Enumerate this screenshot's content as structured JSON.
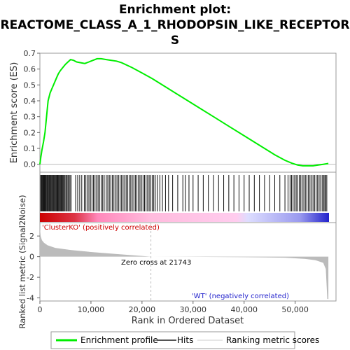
{
  "chart_data": {
    "type": "line",
    "title_line1": "Enrichment plot:",
    "title_line2": "REACTOME_CLASS_A_1_RHODOPSIN_LIKE_RECEPTOR",
    "title_line3": "S",
    "es_panel": {
      "ylabel": "Enrichment score (ES)",
      "ylim": [
        -0.05,
        0.7
      ],
      "yticks": [
        "0.0",
        "0.1",
        "0.2",
        "0.3",
        "0.4",
        "0.5",
        "0.6",
        "0.7"
      ],
      "ytick_values": [
        0.0,
        0.1,
        0.2,
        0.3,
        0.4,
        0.5,
        0.6,
        0.7
      ],
      "line_color": "#00ee00",
      "series": [
        {
          "name": "Enrichment profile",
          "x": [
            0,
            200,
            400,
            700,
            1000,
            1300,
            1600,
            2000,
            2400,
            2800,
            3200,
            3600,
            4000,
            4500,
            5000,
            5500,
            6000,
            6600,
            7200,
            8000,
            8800,
            9600,
            10400,
            11200,
            12000,
            13000,
            14000,
            15000,
            16000,
            18000,
            20000,
            22000,
            25000,
            28000,
            31000,
            34000,
            37000,
            40000,
            43000,
            46000,
            48000,
            49500,
            50500,
            51500,
            52500,
            53500,
            54500,
            55500,
            56500
          ],
          "y": [
            0.0,
            0.05,
            0.09,
            0.14,
            0.2,
            0.3,
            0.4,
            0.45,
            0.48,
            0.51,
            0.54,
            0.57,
            0.59,
            0.61,
            0.63,
            0.645,
            0.66,
            0.655,
            0.645,
            0.64,
            0.635,
            0.645,
            0.655,
            0.665,
            0.665,
            0.66,
            0.655,
            0.65,
            0.64,
            0.61,
            0.575,
            0.54,
            0.48,
            0.42,
            0.36,
            0.3,
            0.24,
            0.18,
            0.12,
            0.06,
            0.025,
            0.005,
            -0.005,
            -0.01,
            -0.01,
            -0.01,
            -0.005,
            0.0,
            0.005
          ]
        }
      ]
    },
    "hits_panel": {
      "hit_positions": [
        150,
        300,
        420,
        560,
        700,
        820,
        950,
        1080,
        1200,
        1350,
        1480,
        1600,
        1750,
        1880,
        2000,
        2150,
        2300,
        2450,
        2600,
        2750,
        2900,
        3050,
        3200,
        3350,
        3500,
        3650,
        3800,
        3950,
        4100,
        4250,
        4400,
        4550,
        4700,
        4900,
        5100,
        5300,
        5500,
        5700,
        5900,
        6100,
        7000,
        7400,
        7800,
        8200,
        8700,
        9000,
        9300,
        9600,
        9900,
        10200,
        10500,
        10800,
        11100,
        11400,
        11700,
        12000,
        12300,
        12600,
        13000,
        13300,
        13600,
        13900,
        14200,
        14500,
        14800,
        15100,
        15400,
        15700,
        16000,
        16300,
        16600,
        16900,
        17200,
        17500,
        17800,
        18100,
        18400,
        18700,
        19000,
        19300,
        19600,
        19900,
        20200,
        20500,
        20800,
        21100,
        21400,
        21700,
        22000,
        22300,
        22600,
        23000,
        23500,
        24000,
        24600,
        25200,
        26000,
        27000,
        28000,
        28500,
        29200,
        30000,
        31000,
        32000,
        33000,
        34000,
        35000,
        36000,
        37000,
        38000,
        39000,
        40000,
        41000,
        42000,
        43000,
        44000,
        45000,
        46000,
        47000,
        48000,
        48600,
        49000,
        49300,
        49600,
        49900,
        50200,
        50500,
        50800,
        51100,
        51400,
        51700,
        52000,
        52300,
        52600,
        52900,
        53200,
        53500,
        53800,
        54100,
        54400,
        54700,
        55000,
        55300,
        55600,
        55800,
        56000,
        56200
      ],
      "colorbar_stops": [
        "#cc0000",
        "#ee4444",
        "#ff99cc",
        "#ffccee",
        "#ccccff",
        "#3333cc"
      ]
    },
    "metric_panel": {
      "ylabel": "Ranked list metric (Signal2Noise)",
      "ylim": [
        -4.3,
        3.3
      ],
      "yticks": [
        "-4",
        "-2",
        "0",
        "2"
      ],
      "ytick_values": [
        -4,
        -2,
        0,
        2
      ],
      "fill_color": "#bbbbbb",
      "metric_x": [
        0,
        150,
        400,
        800,
        1500,
        3000,
        6000,
        10000,
        15000,
        21743,
        30000,
        40000,
        48000,
        52000,
        54000,
        55500,
        56000,
        56300,
        56500
      ],
      "metric_y": [
        2.8,
        2.0,
        1.6,
        1.35,
        1.1,
        0.85,
        0.65,
        0.45,
        0.25,
        0.0,
        -0.02,
        -0.05,
        -0.1,
        -0.22,
        -0.35,
        -0.6,
        -1.2,
        -4.1,
        -4.1
      ],
      "zero_cross_label": "Zero cross at 21743",
      "zero_cross_x": 21743,
      "pos_label": "'ClusterKO' (positively correlated)",
      "neg_label": "'WT' (negatively correlated)",
      "pos_color": "#cc0000",
      "neg_color": "#2222cc"
    },
    "xlabel": "Rank in Ordered Dataset",
    "xlim": [
      0,
      58000
    ],
    "xticks": [
      "0",
      "10,000",
      "20,000",
      "30,000",
      "40,000",
      "50,000"
    ],
    "xtick_values": [
      0,
      10000,
      20000,
      30000,
      40000,
      50000
    ],
    "legend": {
      "items": [
        {
          "label": "Enrichment profile",
          "color": "#00ee00"
        },
        {
          "label": "Hits",
          "color": "#555555"
        },
        {
          "label": "Ranking metric scores",
          "color": "#cccccc"
        }
      ]
    }
  }
}
